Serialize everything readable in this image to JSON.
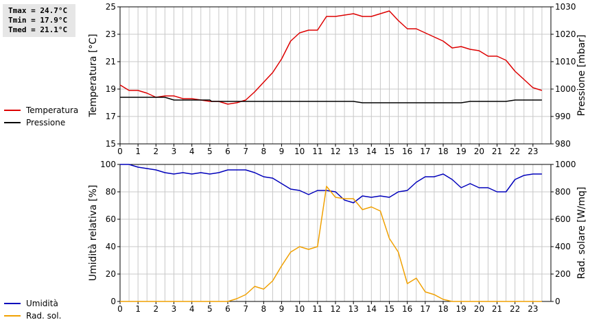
{
  "stats": {
    "tmax": "Tmax = 24.7°C",
    "tmin": "Tmin = 17.9°C",
    "tmed": "Tmed = 21.1°C"
  },
  "colors": {
    "temperature": "#dd0000",
    "pressure": "#000000",
    "humidity": "#0000bb",
    "radiation": "#f0a000",
    "grid": "#c8c8c8"
  },
  "chart_data": [
    {
      "type": "line",
      "legend": [
        "Temperatura",
        "Pressione"
      ],
      "legend_placement": "left",
      "xlabel": "",
      "xlim": [
        0,
        24
      ],
      "xticks": [
        0,
        1,
        2,
        3,
        4,
        5,
        6,
        7,
        8,
        9,
        10,
        11,
        12,
        13,
        14,
        15,
        16,
        17,
        18,
        19,
        20,
        21,
        22,
        23
      ],
      "ylabel": "Temperatura [°C]",
      "ylim": [
        15,
        25
      ],
      "yticks": [
        15,
        17,
        19,
        21,
        23,
        25
      ],
      "y2label": "Pressione [mbar]",
      "y2lim": [
        980,
        1030
      ],
      "y2ticks": [
        980,
        990,
        1000,
        1010,
        1020,
        1030
      ],
      "grid": true,
      "series": [
        {
          "name": "Temperatura",
          "axis": "left",
          "x": [
            0,
            0.5,
            1,
            1.5,
            2,
            2.5,
            3,
            3.5,
            4,
            4.5,
            5,
            5.5,
            6,
            6.5,
            7,
            7.5,
            8,
            8.5,
            9,
            9.5,
            10,
            10.5,
            11,
            11.5,
            12,
            12.5,
            13,
            13.5,
            14,
            14.5,
            15,
            15.5,
            16,
            16.5,
            17,
            17.5,
            18,
            18.5,
            19,
            19.5,
            20,
            20.5,
            21,
            21.5,
            22,
            22.5,
            23,
            23.5
          ],
          "values": [
            19.3,
            18.9,
            18.9,
            18.7,
            18.4,
            18.5,
            18.5,
            18.3,
            18.3,
            18.2,
            18.1,
            18.1,
            17.9,
            18.0,
            18.2,
            18.8,
            19.5,
            20.2,
            21.2,
            22.5,
            23.1,
            23.3,
            23.3,
            24.3,
            24.3,
            24.4,
            24.5,
            24.3,
            24.3,
            24.5,
            24.7,
            24.0,
            23.4,
            23.4,
            23.1,
            22.8,
            22.5,
            22.0,
            22.1,
            21.9,
            21.8,
            21.4,
            21.4,
            21.1,
            20.3,
            19.7,
            19.1,
            18.9
          ]
        },
        {
          "name": "Pressione",
          "axis": "right",
          "x": [
            0,
            2.5,
            3,
            5,
            5.1,
            13,
            13.5,
            18.5,
            19,
            19.5,
            21.5,
            22,
            23.5
          ],
          "values": [
            997,
            997,
            996,
            996,
            995.5,
            995.5,
            995,
            995,
            995,
            995.5,
            995.5,
            996,
            996
          ]
        }
      ]
    },
    {
      "type": "line",
      "legend": [
        "Umidità",
        "Rad. sol."
      ],
      "legend_placement": "left",
      "xlabel": "",
      "xlim": [
        0,
        24
      ],
      "xticks": [
        0,
        1,
        2,
        3,
        4,
        5,
        6,
        7,
        8,
        9,
        10,
        11,
        12,
        13,
        14,
        15,
        16,
        17,
        18,
        19,
        20,
        21,
        22,
        23
      ],
      "ylabel": "Umidità relativa [%]",
      "ylim": [
        0,
        100
      ],
      "yticks": [
        0,
        20,
        40,
        60,
        80,
        100
      ],
      "y2label": "Rad. solare [W/mq]",
      "y2lim": [
        0,
        1000
      ],
      "y2ticks": [
        0,
        200,
        400,
        600,
        800,
        1000
      ],
      "grid": true,
      "series": [
        {
          "name": "Umidità",
          "axis": "left",
          "x": [
            0,
            0.5,
            1,
            1.5,
            2,
            2.5,
            3,
            3.5,
            4,
            4.5,
            5,
            5.5,
            6,
            6.5,
            7,
            7.5,
            8,
            8.5,
            9,
            9.5,
            10,
            10.5,
            11,
            11.5,
            12,
            12.5,
            13,
            13.5,
            14,
            14.5,
            15,
            15.5,
            16,
            16.5,
            17,
            17.5,
            18,
            18.5,
            19,
            19.5,
            20,
            20.5,
            21,
            21.5,
            22,
            22.5,
            23,
            23.5
          ],
          "values": [
            100,
            100,
            98,
            97,
            96,
            94,
            93,
            94,
            93,
            94,
            93,
            94,
            96,
            96,
            96,
            94,
            91,
            90,
            86,
            82,
            81,
            78,
            81,
            81,
            80,
            74,
            72,
            77,
            76,
            77,
            76,
            80,
            81,
            87,
            91,
            91,
            93,
            89,
            83,
            86,
            83,
            83,
            80,
            80,
            89,
            92,
            93,
            93
          ]
        },
        {
          "name": "Rad. sol.",
          "axis": "right",
          "x": [
            0,
            0.5,
            1,
            1.5,
            2,
            2.5,
            3,
            3.5,
            4,
            4.5,
            5,
            5.5,
            6,
            6.5,
            7,
            7.5,
            8,
            8.5,
            9,
            9.5,
            10,
            10.5,
            11,
            11.5,
            12,
            12.5,
            13,
            13.5,
            14,
            14.5,
            15,
            15.5,
            16,
            16.5,
            17,
            17.5,
            18,
            18.5,
            19,
            19.5,
            20,
            20.5,
            21,
            21.5,
            22,
            22.5,
            23,
            23.5
          ],
          "values": [
            0,
            0,
            0,
            0,
            0,
            0,
            0,
            0,
            0,
            0,
            0,
            0,
            0,
            20,
            50,
            110,
            90,
            150,
            260,
            360,
            400,
            380,
            400,
            840,
            760,
            750,
            750,
            670,
            690,
            660,
            460,
            360,
            130,
            170,
            70,
            50,
            15,
            0,
            0,
            0,
            0,
            0,
            0,
            0,
            0,
            0,
            0,
            0
          ]
        }
      ]
    }
  ]
}
